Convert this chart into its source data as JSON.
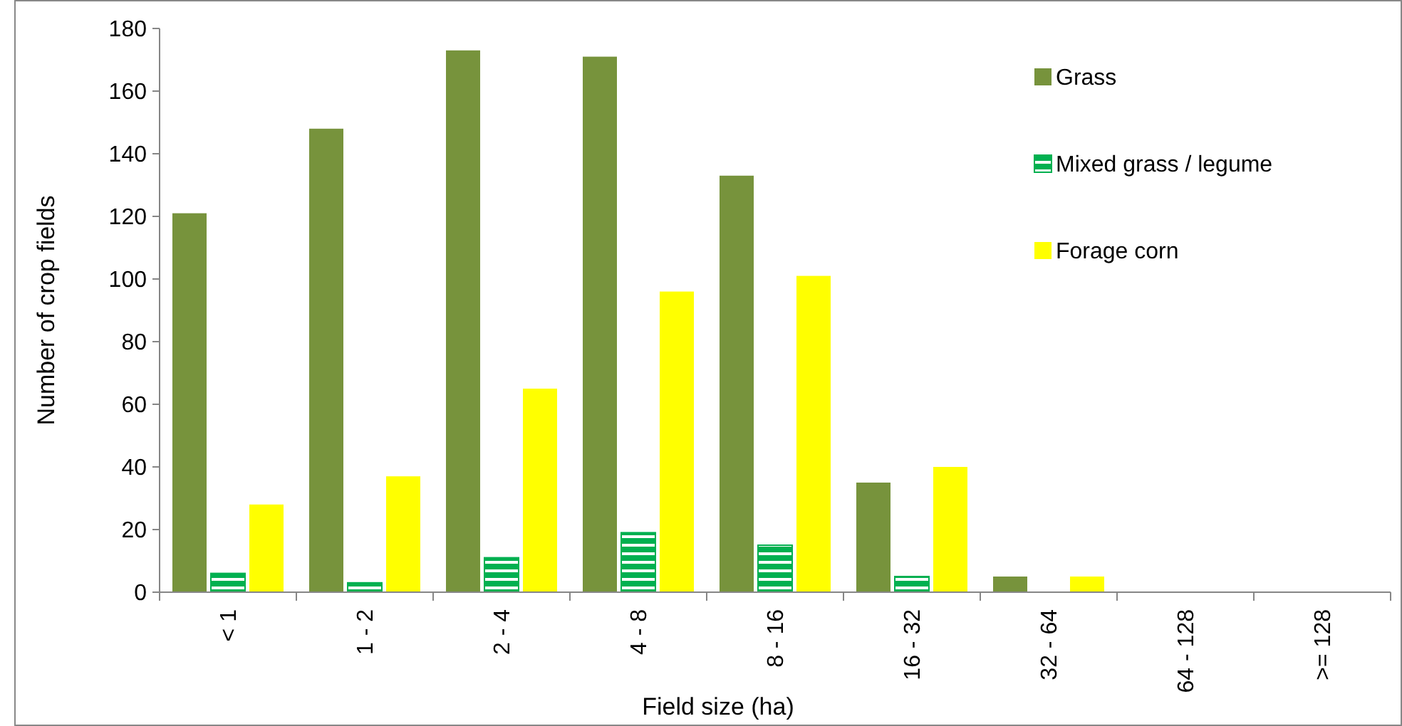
{
  "chart_data": {
    "type": "bar",
    "xlabel": "Field size (ha)",
    "ylabel": "Number of crop fields",
    "categories": [
      "< 1",
      "1 - 2",
      "2 - 4",
      "4 - 8",
      "8 - 16",
      "16 - 32",
      "32 - 64",
      "64 - 128",
      ">= 128"
    ],
    "series": [
      {
        "name": "Grass",
        "color": "#77933c",
        "values": [
          121,
          148,
          173,
          171,
          133,
          35,
          5,
          0,
          0
        ]
      },
      {
        "name": "Mixed grass / legume",
        "color": "#00b050",
        "values": [
          6,
          3,
          11,
          19,
          15,
          5,
          0,
          0,
          0
        ]
      },
      {
        "name": "Forage corn",
        "color": "#ffff00",
        "values": [
          28,
          37,
          65,
          96,
          101,
          40,
          5,
          0,
          0
        ]
      }
    ],
    "ylim": [
      0,
      180
    ],
    "yticks": [
      0,
      20,
      40,
      60,
      80,
      100,
      120,
      140,
      160,
      180
    ],
    "grid": false,
    "legend": "top right"
  }
}
